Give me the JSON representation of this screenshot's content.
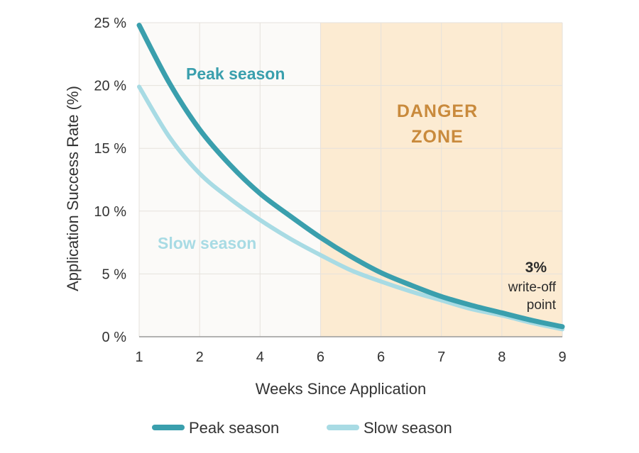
{
  "chart_data": {
    "type": "line",
    "xlabel": "Weeks Since Application",
    "ylabel": "Application Success Rate (%)",
    "x_ticks": [
      "1",
      "2",
      "4",
      "6",
      "6",
      "7",
      "8",
      "9"
    ],
    "y_ticks": [
      "0 %",
      "5 %",
      "10 %",
      "15 %",
      "20 %",
      "25 %"
    ],
    "ylim": [
      0,
      25
    ],
    "grid": true,
    "series": [
      {
        "name": "Peak season",
        "color": "#3a9fad",
        "x_index": [
          0,
          0.5,
          1,
          1.5,
          2,
          2.5,
          3,
          3.5,
          4,
          4.5,
          5,
          5.5,
          6,
          6.5,
          7
        ],
        "values": [
          24.8,
          20.2,
          16.5,
          13.7,
          11.4,
          9.6,
          7.9,
          6.4,
          5.1,
          4.1,
          3.2,
          2.5,
          1.9,
          1.3,
          0.8
        ]
      },
      {
        "name": "Slow season",
        "color": "#a8dbe4",
        "x_index": [
          0,
          0.5,
          1,
          1.5,
          2,
          2.5,
          3,
          3.5,
          4,
          4.5,
          5,
          5.5,
          6,
          6.5,
          7
        ],
        "values": [
          19.9,
          15.9,
          13.0,
          11.0,
          9.3,
          7.8,
          6.5,
          5.3,
          4.4,
          3.6,
          2.9,
          2.2,
          1.7,
          1.1,
          0.6
        ]
      }
    ],
    "danger_zone": {
      "label_line1": "DANGER",
      "label_line2": "ZONE",
      "from_x_index": 3,
      "to_x_index": 7,
      "fill": "#fcebd2",
      "text_color": "#c98a3c"
    },
    "annotation": {
      "value": "3%",
      "line1": "write-off",
      "line2": "point"
    },
    "inline_labels": {
      "peak": "Peak season",
      "slow": "Slow season"
    },
    "legend": {
      "placement": "bottom",
      "items": [
        "Peak season",
        "Slow season"
      ]
    }
  }
}
